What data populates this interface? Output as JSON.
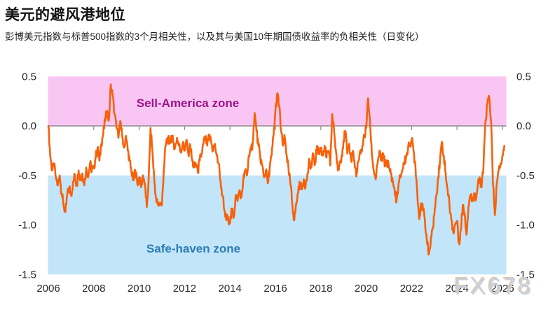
{
  "header": {
    "title": "美元的避风港地位",
    "subtitle": "彭博美元指数与标普500指数的3个月相关性，以及其与美国10年期国债收益率的负相关性（日变化）"
  },
  "watermark": "FX678",
  "colors": {
    "line": "#f7610a",
    "sell_zone_fill": "#f9c6f4",
    "safe_zone_fill": "#c2e5f9",
    "sell_zone_text": "#9a1488",
    "safe_zone_text": "#2b7db5",
    "zero_line": "#8c8c8c",
    "axis_text": "#262626",
    "watermark_text": "#c7d0dd",
    "watermark_shadow": "#ddc9b2"
  },
  "chart_data": {
    "type": "line",
    "title": "美元的避风港地位",
    "subtitle": "彭博美元指数与标普500指数的3个月相关性，以及其与美国10年期国债收益率的负相关性（日变化）",
    "xlabel": "",
    "ylabel": "",
    "ylim": [
      -1.5,
      0.5
    ],
    "xlim": [
      2006,
      2026.17
    ],
    "grid": false,
    "legend": "none",
    "y_ticks": [
      "0.5",
      "0.0",
      "-0.5",
      "-1.0",
      "-1.5"
    ],
    "y_tick_values": [
      0.5,
      0.0,
      -0.5,
      -1.0,
      -1.5
    ],
    "y_axis_sides": "both",
    "x_ticks": [
      "2006",
      "2008",
      "2010",
      "2012",
      "2014",
      "2016",
      "2018",
      "2020",
      "2022",
      "2024",
      "2026"
    ],
    "x_tick_years": [
      2006,
      2008,
      2010,
      2012,
      2014,
      2016,
      2018,
      2020,
      2022,
      2024,
      2026
    ],
    "zones": [
      {
        "label": "Sell-America zone",
        "from": 0.0,
        "to": 0.5
      },
      {
        "label": "Safe-haven zone",
        "from": -1.5,
        "to": -0.5
      }
    ],
    "series": [
      {
        "name": "3-month correlation",
        "start_year": 2006,
        "step_months": 1,
        "values": [
          0.0,
          -0.3,
          -0.45,
          -0.4,
          -0.52,
          -0.6,
          -0.5,
          -0.68,
          -0.8,
          -0.87,
          -0.7,
          -0.62,
          -0.7,
          -0.58,
          -0.5,
          -0.6,
          -0.45,
          -0.55,
          -0.48,
          -0.6,
          -0.42,
          -0.52,
          -0.38,
          -0.45,
          -0.42,
          -0.32,
          -0.22,
          -0.35,
          -0.18,
          -0.08,
          0.05,
          0.15,
          0.06,
          0.42,
          0.3,
          0.12,
          -0.02,
          -0.12,
          0.05,
          -0.1,
          -0.22,
          -0.1,
          -0.25,
          -0.35,
          -0.48,
          -0.55,
          -0.45,
          -0.58,
          -0.52,
          -0.62,
          -0.5,
          -0.58,
          -0.82,
          -0.55,
          -0.02,
          -0.25,
          -0.55,
          -0.75,
          -0.8,
          -0.78,
          -0.8,
          -0.45,
          -0.2,
          -0.12,
          -0.18,
          -0.1,
          -0.16,
          -0.22,
          -0.12,
          -0.2,
          -0.25,
          -0.18,
          -0.25,
          -0.14,
          -0.28,
          -0.2,
          -0.35,
          -0.42,
          -0.38,
          -0.47,
          -0.35,
          -0.28,
          -0.18,
          -0.12,
          -0.2,
          -0.1,
          -0.16,
          -0.25,
          -0.18,
          -0.3,
          -0.38,
          -0.55,
          -0.7,
          -0.85,
          -0.95,
          -0.92,
          -0.98,
          -0.85,
          -0.92,
          -0.7,
          -0.76,
          -0.65,
          -0.72,
          -0.55,
          -0.45,
          -0.5,
          -0.3,
          -0.25,
          -0.18,
          0.13,
          -0.05,
          -0.2,
          -0.32,
          -0.4,
          -0.52,
          -0.45,
          -0.58,
          -0.42,
          -0.3,
          -0.1,
          0.15,
          0.33,
          0.2,
          -0.05,
          -0.2,
          -0.12,
          -0.3,
          -0.45,
          -0.6,
          -0.8,
          -0.95,
          -0.78,
          -0.68,
          -0.58,
          -0.64,
          -0.54,
          -0.6,
          -0.48,
          -0.35,
          -0.42,
          -0.28,
          -0.38,
          -0.2,
          -0.28,
          -0.22,
          -0.3,
          -0.2,
          -0.32,
          -0.25,
          -0.4,
          0.12,
          -0.05,
          -0.25,
          -0.45,
          -0.38,
          -0.3,
          -0.15,
          -0.05,
          -0.28,
          -0.18,
          -0.35,
          -0.25,
          -0.42,
          -0.48,
          -0.35,
          -0.28,
          -0.2,
          -0.1,
          -0.02,
          0.28,
          0.05,
          -0.3,
          -0.45,
          -0.54,
          -0.38,
          -0.25,
          -0.35,
          -0.28,
          -0.4,
          -0.35,
          -0.42,
          -0.48,
          -0.55,
          -0.65,
          -0.76,
          -0.6,
          -0.52,
          -0.45,
          -0.38,
          -0.32,
          -0.25,
          -0.18,
          -0.14,
          -0.25,
          -0.4,
          -0.68,
          -0.94,
          -0.78,
          -0.85,
          -0.95,
          -1.15,
          -1.3,
          -1.2,
          -1.05,
          -0.9,
          -0.7,
          -0.52,
          -0.35,
          -0.16,
          -0.3,
          -0.48,
          -0.64,
          -0.8,
          -0.95,
          -1.07,
          -1.0,
          -0.96,
          -1.18,
          -1.05,
          -0.8,
          -0.88,
          -1.1,
          -0.82,
          -0.7,
          -0.76,
          -0.68,
          -0.74,
          -0.6,
          -0.52,
          -0.62,
          -0.4,
          0.05,
          0.22,
          0.29,
          0.05,
          -0.6,
          -0.9,
          -0.58,
          -0.45,
          -0.38,
          -0.3,
          -0.2
        ]
      }
    ]
  }
}
